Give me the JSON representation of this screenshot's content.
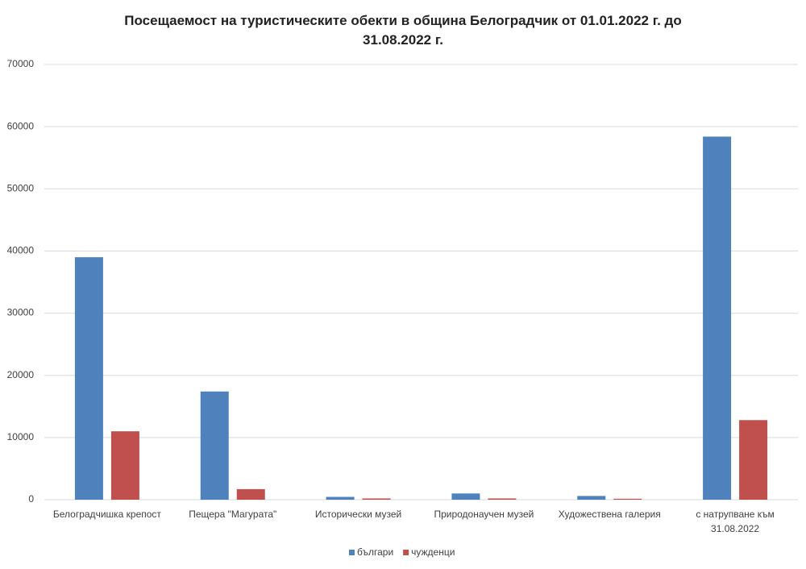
{
  "chart_data": {
    "type": "bar",
    "title": "Посещаемост на туристическите обекти в община Белоградчик от 01.01.2022 г. до 31.08.2022 г.",
    "categories": [
      "Белоградчишка крепост",
      "Пещера \"Магурата\"",
      "Исторически музей",
      "Природонаучен музей",
      "Художествена галерия",
      "с натрупване към 31.08.2022"
    ],
    "series": [
      {
        "name": "българи",
        "color": "#4f81bd",
        "values": [
          39000,
          17400,
          450,
          1000,
          600,
          58400
        ]
      },
      {
        "name": "чужденци",
        "color": "#c0504d",
        "values": [
          11000,
          1700,
          200,
          200,
          150,
          12800
        ]
      }
    ],
    "ylim": [
      0,
      70000
    ],
    "yticks": [
      0,
      10000,
      20000,
      30000,
      40000,
      50000,
      60000,
      70000
    ],
    "grid": true,
    "legend": "bottom"
  }
}
